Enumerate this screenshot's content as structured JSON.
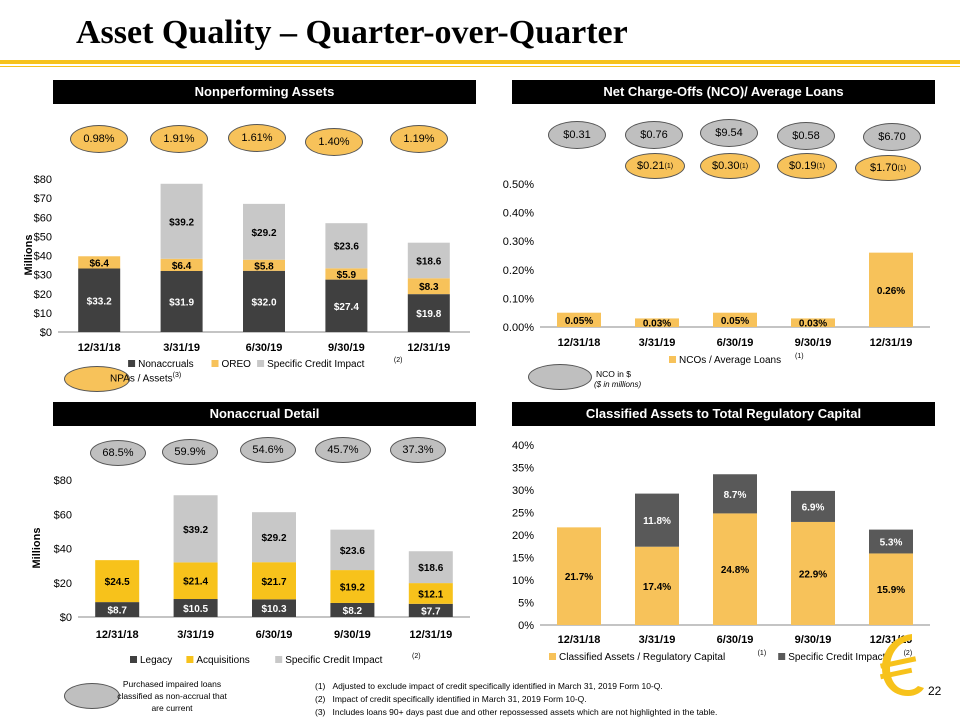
{
  "title": "Asset Quality – Quarter-over-Quarter",
  "page_number": "22",
  "colors": {
    "gold": "#F7C25A",
    "dark": "#404040",
    "light": "#C8C8C8",
    "accent": "#F7C21B"
  },
  "panels": {
    "npa": {
      "header": "Nonperforming Assets",
      "ovals": [
        "0.98%",
        "1.91%",
        "1.61%",
        "1.40%",
        "1.19%"
      ],
      "key_label": "NPAs / Assets",
      "key_note": "(3)"
    },
    "nco": {
      "header": "Net Charge-Offs (NCO)/ Average Loans",
      "ovals_top": [
        "$0.31",
        "$0.76",
        "$9.54",
        "$0.58",
        "$6.70"
      ],
      "ovals_adj": [
        "$0.21",
        "$0.30",
        "$0.19",
        "$1.70 "
      ],
      "adj_note": "(1)",
      "key_label": "NCO in $",
      "key_sub": "($ in millions)"
    },
    "nonaccrual": {
      "header": "Nonaccrual Detail",
      "ovals": [
        "68.5%",
        "59.9%",
        "54.6%",
        "45.7%",
        "37.3%"
      ],
      "key_label": "Purchased impaired loans classified as non-accrual that are current"
    },
    "classified": {
      "header": "Classified Assets to Total Regulatory Capital"
    }
  },
  "footnotes": [
    {
      "num": "(1)",
      "text": "Adjusted to exclude impact of credit specifically identified in March 31, 2019 Form 10-Q."
    },
    {
      "num": "(2)",
      "text": "Impact of credit specifically identified in March 31, 2019 Form 10-Q."
    },
    {
      "num": "(3)",
      "text": "Includes loans 90+ days past due and other repossessed assets which are not highlighted in the table."
    }
  ],
  "chart_data": [
    {
      "type": "bar",
      "stacked": true,
      "title": "",
      "ylabel": "Millions",
      "ylim": [
        0,
        80
      ],
      "yticks": [
        "$0",
        "$10",
        "$20",
        "$30",
        "$40",
        "$50",
        "$60",
        "$70",
        "$80"
      ],
      "categories": [
        "12/31/18",
        "3/31/19",
        "6/30/19",
        "9/30/19",
        "12/31/19"
      ],
      "series": [
        {
          "name": "Nonaccruals",
          "color": "#404040",
          "values": [
            33.2,
            31.9,
            32.0,
            27.4,
            19.8
          ],
          "labels": [
            "$33.2",
            "$31.9",
            "$32.0",
            "$27.4",
            "$19.8"
          ]
        },
        {
          "name": "OREO",
          "color": "#F7C25A",
          "values": [
            6.4,
            6.4,
            5.8,
            5.9,
            8.3
          ],
          "labels": [
            "$6.4",
            "$6.4",
            "$5.8",
            "$5.9",
            "$8.3"
          ]
        },
        {
          "name": "Specific Credit Impact",
          "color": "#C8C8C8",
          "values": [
            0,
            39.2,
            29.2,
            23.6,
            18.6
          ],
          "labels": [
            "",
            "$39.2",
            "$29.2",
            "$23.6",
            "$18.6"
          ]
        }
      ],
      "legend_note": "(2)",
      "legend": "bottom"
    },
    {
      "type": "bar",
      "title": "",
      "ylim": [
        0,
        0.5
      ],
      "yticks": [
        "0.00%",
        "0.10%",
        "0.20%",
        "0.30%",
        "0.40%",
        "0.50%"
      ],
      "categories": [
        "12/31/18",
        "3/31/19",
        "6/30/19",
        "9/30/19",
        "12/31/19"
      ],
      "series": [
        {
          "name": "NCOs / Average Loans",
          "color": "#F7C25A",
          "values": [
            0.05,
            0.03,
            0.05,
            0.03,
            0.26
          ],
          "labels": [
            "0.05%",
            "0.03%",
            "0.05%",
            "0.03%",
            "0.26%"
          ]
        }
      ],
      "legend_note": "(1)",
      "legend": "bottom"
    },
    {
      "type": "bar",
      "stacked": true,
      "title": "",
      "ylabel": "Millions",
      "ylim": [
        0,
        80
      ],
      "yticks": [
        "$0",
        "$20",
        "$40",
        "$60",
        "$80"
      ],
      "categories": [
        "12/31/18",
        "3/31/19",
        "6/30/19",
        "9/30/19",
        "12/31/19"
      ],
      "series": [
        {
          "name": "Legacy",
          "color": "#404040",
          "values": [
            8.7,
            10.5,
            10.3,
            8.2,
            7.7
          ],
          "labels": [
            "$8.7",
            "$10.5",
            "$10.3",
            "$8.2",
            "$7.7"
          ]
        },
        {
          "name": "Acquisitions",
          "color": "#F7C21B",
          "values": [
            24.5,
            21.4,
            21.7,
            19.2,
            12.1
          ],
          "labels": [
            "$24.5",
            "$21.4",
            "$21.7",
            "$19.2",
            "$12.1"
          ]
        },
        {
          "name": "Specific Credit Impact",
          "color": "#C8C8C8",
          "values": [
            0,
            39.2,
            29.2,
            23.6,
            18.6
          ],
          "labels": [
            "",
            "$39.2",
            "$29.2",
            "$23.6",
            "$18.6"
          ]
        }
      ],
      "legend_note": "(2)",
      "legend": "bottom"
    },
    {
      "type": "bar",
      "stacked": true,
      "title": "",
      "ylim": [
        0,
        40
      ],
      "yticks": [
        "0%",
        "5%",
        "10%",
        "15%",
        "20%",
        "25%",
        "30%",
        "35%",
        "40%"
      ],
      "categories": [
        "12/31/18",
        "3/31/19",
        "6/30/19",
        "9/30/19",
        "12/31/19"
      ],
      "series": [
        {
          "name": "Classified Assets / Regulatory Capital",
          "color": "#F7C25A",
          "values": [
            21.7,
            17.4,
            24.8,
            22.9,
            15.9
          ],
          "labels": [
            "21.7%",
            "17.4%",
            "24.8%",
            "22.9%",
            "15.9%"
          ],
          "note": "(1)"
        },
        {
          "name": "Specific Credit Impact",
          "color": "#595959",
          "values": [
            0,
            11.8,
            8.7,
            6.9,
            5.3
          ],
          "labels": [
            "",
            "11.8%",
            "8.7%",
            "6.9%",
            "5.3%"
          ],
          "note": "(2)"
        }
      ],
      "legend": "bottom"
    }
  ]
}
